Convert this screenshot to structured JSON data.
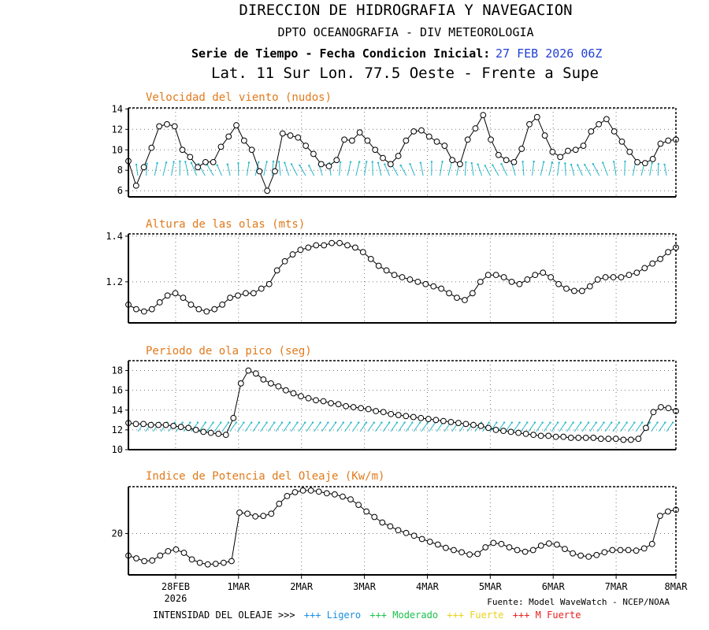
{
  "header": {
    "line1": "DIRECCION DE HIDROGRAFIA Y NAVEGACION",
    "line2": "DPTO OCEANOGRAFIA - DIV METEOROLOGIA",
    "line3_label": "Serie de Tiempo - Fecha Condicion Inicial:",
    "line3_date": "27 FEB 2026 06Z",
    "line4": "Lat. 11 Sur  Lon. 77.5 Oeste - Frente a Supe"
  },
  "colors": {
    "title_orange": "#e07a1c",
    "date_blue": "#1f3fd6",
    "arrow_cyan": "#22b8c8",
    "light": "#1a8fe0",
    "moderate": "#19c34a",
    "strong": "#e8d21a",
    "very_strong": "#e82020"
  },
  "x_axis": {
    "range_days": [
      0,
      8.7
    ],
    "ticks": [
      {
        "day": 0.75,
        "label": "28FEB"
      },
      {
        "day": 1.75,
        "label": "1MAR"
      },
      {
        "day": 2.75,
        "label": "2MAR"
      },
      {
        "day": 3.75,
        "label": "3MAR"
      },
      {
        "day": 4.75,
        "label": "4MAR"
      },
      {
        "day": 5.75,
        "label": "5MAR"
      },
      {
        "day": 6.75,
        "label": "6MAR"
      },
      {
        "day": 7.75,
        "label": "7MAR"
      },
      {
        "day": 8.75,
        "label": "8MAR"
      }
    ],
    "year_label": "2026"
  },
  "chart_data": [
    {
      "type": "line",
      "title": "Velocidad del viento (nudos)",
      "ylim": [
        5.4,
        14.1
      ],
      "yticks": [
        6,
        8,
        10,
        12,
        14
      ],
      "grid": true,
      "values": [
        8.9,
        6.5,
        8.3,
        10.2,
        12.3,
        12.5,
        12.3,
        10,
        9.3,
        8.3,
        8.8,
        8.8,
        10.3,
        11.3,
        12.4,
        10.9,
        10,
        7.9,
        6,
        7.9,
        11.6,
        11.4,
        11.2,
        10.4,
        9.6,
        8.6,
        8.4,
        9,
        11,
        10.9,
        11.7,
        10.9,
        10,
        9.2,
        8.6,
        9.4,
        10.9,
        11.8,
        11.9,
        11.3,
        10.8,
        10.4,
        9,
        8.6,
        11,
        12.1,
        13.4,
        11,
        9.5,
        9,
        8.8,
        10.1,
        12.5,
        13.2,
        11.4,
        9.8,
        9.3,
        9.9,
        10,
        10.4,
        11.8,
        12.5,
        13,
        11.8,
        10.8,
        9.8,
        8.8,
        8.7,
        9.1,
        10.6,
        10.9,
        11
      ]
    },
    {
      "type": "line",
      "title": "Altura de las olas (mts)",
      "ylim": [
        1.02,
        1.41
      ],
      "yticks": [
        1.2,
        1.4
      ],
      "ytick_labels": [
        "1.2",
        "1.4"
      ],
      "grid": true,
      "values": [
        1.1,
        1.08,
        1.07,
        1.08,
        1.11,
        1.14,
        1.15,
        1.13,
        1.1,
        1.08,
        1.07,
        1.08,
        1.1,
        1.13,
        1.14,
        1.15,
        1.15,
        1.17,
        1.19,
        1.25,
        1.29,
        1.32,
        1.34,
        1.35,
        1.36,
        1.36,
        1.37,
        1.37,
        1.36,
        1.35,
        1.33,
        1.3,
        1.27,
        1.25,
        1.23,
        1.22,
        1.21,
        1.2,
        1.19,
        1.18,
        1.17,
        1.15,
        1.13,
        1.12,
        1.15,
        1.2,
        1.23,
        1.23,
        1.22,
        1.2,
        1.19,
        1.21,
        1.23,
        1.24,
        1.22,
        1.19,
        1.17,
        1.16,
        1.16,
        1.18,
        1.21,
        1.22,
        1.22,
        1.22,
        1.23,
        1.24,
        1.26,
        1.28,
        1.3,
        1.33,
        1.35
      ]
    },
    {
      "type": "line",
      "title": "Periodo de ola pico (seg)",
      "ylim": [
        10,
        19
      ],
      "yticks": [
        10,
        12,
        14,
        16,
        18
      ],
      "grid": true,
      "values": [
        12.7,
        12.6,
        12.6,
        12.5,
        12.5,
        12.5,
        12.4,
        12.3,
        12.2,
        12,
        11.8,
        11.7,
        11.6,
        11.5,
        13.2,
        16.7,
        18,
        17.7,
        17.1,
        16.7,
        16.4,
        16,
        15.7,
        15.4,
        15.2,
        15,
        14.9,
        14.7,
        14.6,
        14.4,
        14.3,
        14.2,
        14.1,
        13.9,
        13.8,
        13.6,
        13.5,
        13.4,
        13.3,
        13.2,
        13.1,
        13,
        12.9,
        12.8,
        12.7,
        12.6,
        12.5,
        12.4,
        12.2,
        12,
        11.9,
        11.8,
        11.7,
        11.6,
        11.5,
        11.4,
        11.4,
        11.3,
        11.3,
        11.2,
        11.2,
        11.2,
        11.2,
        11.1,
        11.1,
        11.1,
        11,
        11,
        11.1,
        12.2,
        13.8,
        14.3,
        14.2,
        13.9
      ]
    },
    {
      "type": "line",
      "title": "Indice de Potencia del Oleaje (Kw/m)",
      "ylim": [
        12.5,
        28.5
      ],
      "yticks": [
        20
      ],
      "grid": true,
      "values": [
        16,
        15.5,
        15,
        15.1,
        16,
        16.8,
        17.1,
        16.5,
        15.3,
        14.7,
        14.4,
        14.5,
        14.7,
        15,
        23.8,
        23.6,
        23.1,
        23.2,
        23.6,
        25.4,
        26.8,
        27.5,
        27.8,
        27.8,
        27.6,
        27.3,
        27.1,
        26.7,
        26.2,
        25.2,
        24,
        23,
        22,
        21.3,
        20.6,
        20.1,
        19.6,
        19,
        18.5,
        18,
        17.4,
        17,
        16.6,
        16.2,
        16.3,
        17.5,
        18.3,
        18.1,
        17.5,
        17,
        16.7,
        17,
        17.8,
        18.2,
        18,
        17.2,
        16.4,
        16,
        15.8,
        16.1,
        16.6,
        17,
        17,
        17,
        16.9,
        17.3,
        18.1,
        23.2,
        24,
        24.3
      ]
    }
  ],
  "footer": {
    "source": "Fuente: Model WaveWatch - NCEP/NOAA",
    "legend_label": "INTENSIDAD DEL OLEAJE >>>",
    "legend_items": [
      {
        "label": "+++ Ligero"
      },
      {
        "label": "+++ Moderado"
      },
      {
        "label": "+++ Fuerte"
      },
      {
        "label": "+++ M Fuerte"
      }
    ]
  }
}
